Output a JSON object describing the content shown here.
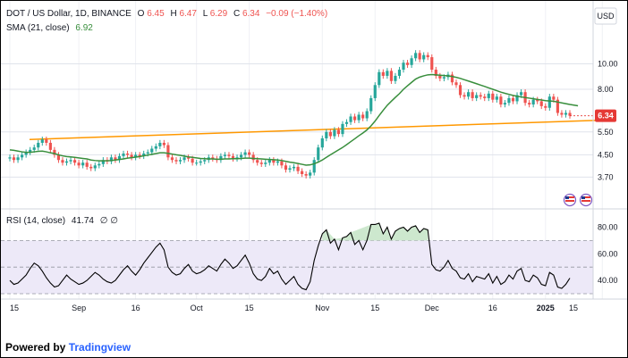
{
  "legend": {
    "symbol": "DOT / US Dollar, 1D, BINANCE",
    "o_label": "O",
    "o_value": "6.45",
    "h_label": "H",
    "h_value": "6.47",
    "l_label": "L",
    "l_value": "6.29",
    "c_label": "C",
    "c_value": "6.34",
    "change": "−0.09 (−1.40%)",
    "sma_label": "SMA (21, close)",
    "sma_value": "6.92",
    "rsi_label": "RSI (14, close)",
    "rsi_value": "41.74",
    "rsi_extra": "∅ ∅"
  },
  "currency_button": "USD",
  "footer": {
    "prefix": "Powered by ",
    "brand": "Tradingview"
  },
  "colors": {
    "up": "#26a69a",
    "down": "#ef5350",
    "sma": "#388e3c",
    "trendline": "#ff9800",
    "rsi": "#000000",
    "price_tag": "#e53935",
    "rsi_band": "#ede9f8",
    "rsi_fill": "#c8e6c9",
    "legend_value": "#ef5350"
  },
  "chart_data": [
    {
      "type": "candlestick",
      "title": "DOT / US Dollar, 1D, BINANCE",
      "y_scale": "log",
      "ylim": [
        3.3,
        12.7
      ],
      "y_ticks": [
        "3.70",
        "4.50",
        "5.50",
        "8.00",
        "10.00"
      ],
      "x_ticks": [
        "15",
        "Sep",
        "16",
        "Oct",
        "15",
        "Nov",
        "15",
        "Dec",
        "16",
        "2025",
        "15"
      ],
      "last_price": "6.34",
      "closes": [
        4.4,
        4.3,
        4.4,
        4.5,
        4.6,
        4.7,
        4.8,
        5.0,
        5.15,
        5.0,
        4.7,
        4.5,
        4.3,
        4.2,
        4.25,
        4.3,
        4.2,
        4.1,
        4.2,
        4.05,
        4.0,
        4.1,
        4.15,
        4.3,
        4.25,
        4.4,
        4.3,
        4.45,
        4.55,
        4.5,
        4.4,
        4.5,
        4.45,
        4.55,
        4.6,
        4.75,
        4.85,
        5.0,
        4.9,
        4.4,
        4.3,
        4.25,
        4.3,
        4.4,
        4.35,
        4.2,
        4.2,
        4.25,
        4.3,
        4.4,
        4.35,
        4.3,
        4.45,
        4.5,
        4.45,
        4.35,
        4.4,
        4.5,
        4.6,
        4.5,
        4.3,
        4.2,
        4.15,
        4.2,
        4.3,
        4.2,
        4.25,
        4.1,
        3.95,
        4.0,
        4.05,
        3.9,
        3.8,
        3.75,
        3.85,
        4.3,
        4.8,
        5.2,
        5.5,
        5.3,
        5.6,
        5.4,
        5.9,
        6.0,
        6.3,
        6.1,
        6.4,
        6.2,
        6.6,
        7.4,
        8.3,
        9.3,
        9.0,
        9.4,
        8.6,
        9.0,
        9.5,
        10.1,
        9.9,
        10.5,
        11.0,
        10.4,
        10.8,
        10.6,
        9.5,
        9.0,
        8.8,
        8.9,
        9.1,
        8.5,
        8.3,
        7.6,
        7.5,
        7.8,
        7.4,
        7.6,
        7.5,
        7.4,
        7.7,
        7.3,
        7.5,
        7.0,
        7.1,
        7.4,
        7.2,
        7.6,
        7.8,
        7.1,
        7.0,
        7.3,
        7.2,
        6.9,
        6.8,
        7.5,
        7.3,
        6.5,
        6.4,
        6.5,
        6.34
      ],
      "sma_21": [
        4.7,
        4.68,
        4.65,
        4.62,
        4.6,
        4.6,
        4.62,
        4.64,
        4.65,
        4.62,
        4.58,
        4.55,
        4.5,
        4.46,
        4.43,
        4.42,
        4.4,
        4.38,
        4.36,
        4.34,
        4.3,
        4.28,
        4.27,
        4.27,
        4.27,
        4.28,
        4.3,
        4.32,
        4.34,
        4.37,
        4.39,
        4.41,
        4.43,
        4.46,
        4.49,
        4.52,
        4.55,
        4.58,
        4.58,
        4.56,
        4.53,
        4.5,
        4.48,
        4.45,
        4.42,
        4.4,
        4.38,
        4.36,
        4.35,
        4.34,
        4.34,
        4.33,
        4.33,
        4.34,
        4.34,
        4.35,
        4.35,
        4.36,
        4.37,
        4.37,
        4.36,
        4.35,
        4.34,
        4.33,
        4.32,
        4.31,
        4.3,
        4.28,
        4.25,
        4.22,
        4.2,
        4.17,
        4.14,
        4.11,
        4.12,
        4.16,
        4.22,
        4.3,
        4.4,
        4.5,
        4.6,
        4.7,
        4.8,
        4.92,
        5.05,
        5.18,
        5.32,
        5.45,
        5.6,
        5.8,
        6.05,
        6.35,
        6.65,
        6.95,
        7.2,
        7.45,
        7.7,
        8.0,
        8.25,
        8.5,
        8.75,
        8.9,
        9.0,
        9.08,
        9.1,
        9.08,
        9.05,
        9.02,
        9.0,
        8.95,
        8.88,
        8.8,
        8.7,
        8.6,
        8.5,
        8.4,
        8.3,
        8.2,
        8.1,
        8.0,
        7.9,
        7.8,
        7.72,
        7.65,
        7.58,
        7.52,
        7.48,
        7.44,
        7.4,
        7.36,
        7.32,
        7.28,
        7.24,
        7.22,
        7.2,
        7.15,
        7.1,
        7.05,
        7.0,
        6.96,
        6.92
      ],
      "trendline": {
        "from": [
          4.85,
          5.15
        ],
        "to": [
          139,
          6.0
        ]
      }
    },
    {
      "type": "line",
      "title": "RSI (14, close)",
      "ylim": [
        30,
        85
      ],
      "y_ticks": [
        "40.00",
        "60.00",
        "80.00"
      ],
      "bands": [
        30,
        50,
        70
      ],
      "values": [
        40,
        37,
        38,
        41,
        44,
        49,
        53,
        51,
        47,
        42,
        38,
        35,
        36,
        40,
        44,
        41,
        39,
        37,
        38,
        40,
        43,
        46,
        44,
        41,
        39,
        38,
        40,
        44,
        48,
        51,
        47,
        44,
        48,
        53,
        57,
        61,
        65,
        68,
        63,
        50,
        46,
        44,
        45,
        49,
        52,
        47,
        45,
        46,
        48,
        51,
        49,
        47,
        52,
        56,
        53,
        49,
        51,
        55,
        59,
        53,
        45,
        41,
        40,
        43,
        49,
        45,
        47,
        41,
        37,
        40,
        43,
        37,
        34,
        33,
        39,
        55,
        66,
        75,
        78,
        68,
        71,
        63,
        72,
        73,
        76,
        67,
        70,
        63,
        70,
        82,
        82,
        83,
        75,
        80,
        71,
        77,
        79,
        80,
        77,
        80,
        81,
        76,
        79,
        78,
        52,
        48,
        47,
        50,
        55,
        49,
        47,
        42,
        41,
        45,
        39,
        43,
        42,
        41,
        45,
        38,
        43,
        37,
        39,
        44,
        41,
        47,
        49,
        40,
        39,
        44,
        42,
        37,
        36,
        46,
        44,
        35,
        34,
        37,
        41.74
      ]
    }
  ]
}
